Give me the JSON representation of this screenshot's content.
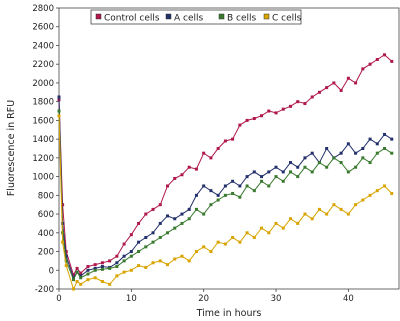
{
  "chart_data": {
    "type": "line",
    "xlabel": "Time in hours",
    "ylabel": "Fluorescence in RFU",
    "xlim": [
      0,
      47
    ],
    "ylim": [
      -200,
      2800
    ],
    "x_ticks": [
      0,
      10,
      20,
      30,
      40
    ],
    "y_ticks": [
      -200,
      0,
      200,
      400,
      600,
      800,
      1000,
      1200,
      1400,
      1600,
      1800,
      2000,
      2200,
      2400,
      2600,
      2800
    ],
    "legend_position": "top-center",
    "series": [
      {
        "name": "Control cells",
        "color": "#b0174b",
        "x": [
          0,
          0.5,
          1,
          2,
          2.5,
          3,
          4,
          5,
          6,
          7,
          8,
          9,
          10,
          11,
          12,
          13,
          14,
          15,
          16,
          17,
          18,
          19,
          20,
          21,
          22,
          23,
          24,
          25,
          26,
          27,
          28,
          29,
          30,
          31,
          32,
          33,
          34,
          35,
          36,
          37,
          38,
          39,
          40,
          41,
          42,
          43,
          44,
          45,
          46
        ],
        "y": [
          1820,
          700,
          200,
          -50,
          20,
          -30,
          40,
          60,
          80,
          100,
          150,
          280,
          380,
          500,
          600,
          650,
          700,
          900,
          980,
          1020,
          1100,
          1080,
          1250,
          1200,
          1300,
          1380,
          1400,
          1550,
          1600,
          1620,
          1650,
          1700,
          1680,
          1720,
          1750,
          1800,
          1780,
          1850,
          1900,
          1950,
          2000,
          1920,
          2050,
          2000,
          2150,
          2200,
          2250,
          2300,
          2230
        ]
      },
      {
        "name": "A cells",
        "color": "#23306b",
        "x": [
          0,
          0.5,
          1,
          2,
          2.5,
          3,
          4,
          5,
          6,
          7,
          8,
          9,
          10,
          11,
          12,
          13,
          14,
          15,
          16,
          17,
          18,
          19,
          20,
          21,
          22,
          23,
          24,
          25,
          26,
          27,
          28,
          29,
          30,
          31,
          32,
          33,
          34,
          35,
          36,
          37,
          38,
          39,
          40,
          41,
          42,
          43,
          44,
          45,
          46
        ],
        "y": [
          1850,
          500,
          150,
          -80,
          -20,
          -60,
          0,
          20,
          40,
          30,
          80,
          150,
          200,
          300,
          350,
          400,
          500,
          580,
          550,
          600,
          650,
          800,
          900,
          850,
          800,
          900,
          950,
          900,
          1000,
          1050,
          1000,
          1050,
          1100,
          1050,
          1150,
          1100,
          1200,
          1250,
          1150,
          1300,
          1200,
          1250,
          1350,
          1250,
          1300,
          1400,
          1350,
          1450,
          1400
        ]
      },
      {
        "name": "B cells",
        "color": "#3a7a2e",
        "x": [
          0,
          0.5,
          1,
          2,
          2.5,
          3,
          4,
          5,
          6,
          7,
          8,
          9,
          10,
          11,
          12,
          13,
          14,
          15,
          16,
          17,
          18,
          19,
          20,
          21,
          22,
          23,
          24,
          25,
          26,
          27,
          28,
          29,
          30,
          31,
          32,
          33,
          34,
          35,
          36,
          37,
          38,
          39,
          40,
          41,
          42,
          43,
          44,
          45,
          46
        ],
        "y": [
          1700,
          400,
          100,
          -100,
          -20,
          -80,
          -40,
          0,
          10,
          20,
          40,
          100,
          150,
          200,
          250,
          300,
          350,
          400,
          450,
          500,
          550,
          650,
          600,
          700,
          750,
          800,
          820,
          780,
          900,
          850,
          950,
          900,
          1000,
          950,
          1050,
          1000,
          1100,
          1050,
          1150,
          1100,
          1200,
          1150,
          1050,
          1100,
          1200,
          1150,
          1250,
          1300,
          1250
        ]
      },
      {
        "name": "C cells",
        "color": "#d9a400",
        "x": [
          0,
          0.5,
          1,
          2,
          2.5,
          3,
          4,
          5,
          6,
          7,
          8,
          9,
          10,
          11,
          12,
          13,
          14,
          15,
          16,
          17,
          18,
          19,
          20,
          21,
          22,
          23,
          24,
          25,
          26,
          27,
          28,
          29,
          30,
          31,
          32,
          33,
          34,
          35,
          36,
          37,
          38,
          39,
          40,
          41,
          42,
          43,
          44,
          45,
          46
        ],
        "y": [
          1650,
          300,
          50,
          -200,
          -120,
          -150,
          -100,
          -80,
          -120,
          -150,
          -60,
          -20,
          0,
          50,
          30,
          80,
          100,
          60,
          120,
          150,
          100,
          200,
          250,
          200,
          300,
          280,
          350,
          300,
          400,
          350,
          450,
          400,
          500,
          450,
          550,
          500,
          600,
          550,
          650,
          600,
          700,
          650,
          600,
          700,
          750,
          800,
          850,
          900,
          820
        ]
      }
    ]
  }
}
